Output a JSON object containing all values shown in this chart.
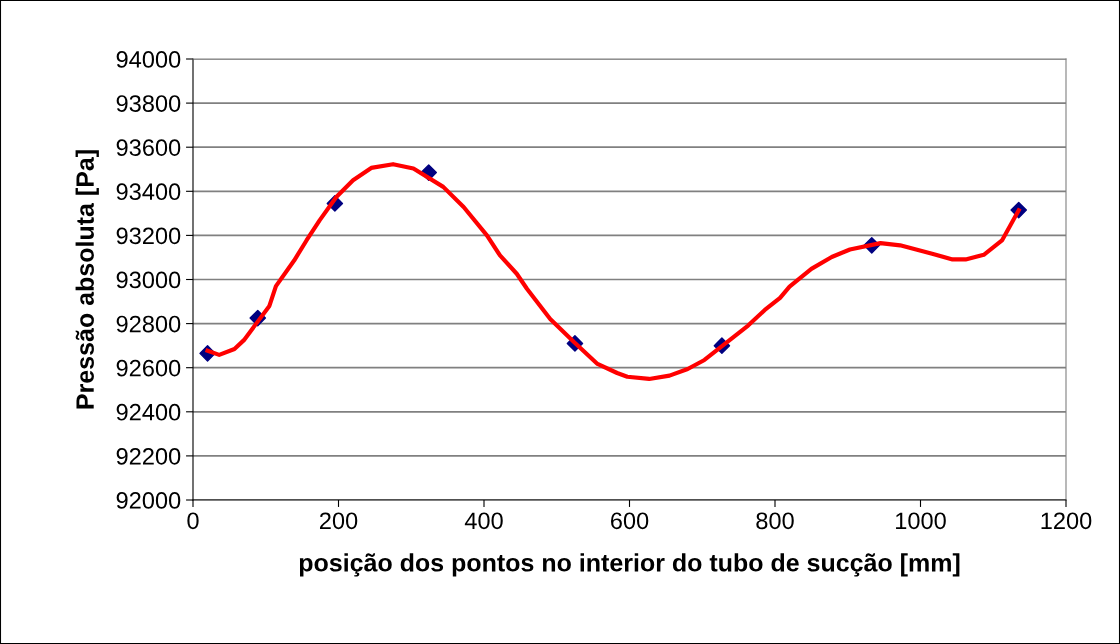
{
  "chart_data": {
    "type": "scatter",
    "xlabel": "posição dos pontos no interior do tubo de sucção [mm]",
    "ylabel": "Pressão absoluta [Pa]",
    "series": [
      {
        "type": "line",
        "color": "#ff0000",
        "line_style": "solid",
        "marker": "none",
        "x": [
          20,
          36,
          57,
          70,
          105,
          114,
          139,
          156,
          174,
          197,
          220,
          245,
          275,
          303,
          344,
          372,
          404,
          422,
          445,
          459,
          491,
          524,
          556,
          583,
          597,
          627,
          655,
          680,
          703,
          728,
          763,
          786,
          807,
          820,
          850,
          878,
          903,
          945,
          972,
          1016,
          1044,
          1062,
          1087,
          1112,
          1135
        ],
        "values": [
          92677,
          92658,
          92685,
          92725,
          92880,
          92970,
          93086,
          93177,
          93268,
          93374,
          93450,
          93506,
          93523,
          93503,
          93420,
          93329,
          93200,
          93109,
          93026,
          92958,
          92821,
          92715,
          92617,
          92576,
          92559,
          92549,
          92564,
          92594,
          92635,
          92700,
          92791,
          92862,
          92917,
          92968,
          93048,
          93102,
          93136,
          93165,
          93155,
          93117,
          93091,
          93091,
          93112,
          93177,
          93314
        ]
      },
      {
        "color": "#000080",
        "marker": "diamond",
        "x": [
          20,
          89,
          195,
          324,
          525,
          727,
          933,
          1135
        ],
        "values": [
          92665,
          92825,
          93345,
          93485,
          92710,
          92700,
          93155,
          93315
        ]
      }
    ],
    "xlim": [
      0,
      1200
    ],
    "xticks": [
      0,
      200,
      400,
      600,
      800,
      1000,
      1200
    ],
    "ylim": [
      92000,
      94000
    ],
    "yticks": [
      92000,
      92200,
      92400,
      92600,
      92800,
      93000,
      93200,
      93400,
      93600,
      93800,
      94000
    ],
    "grid": "y",
    "legend": false
  }
}
